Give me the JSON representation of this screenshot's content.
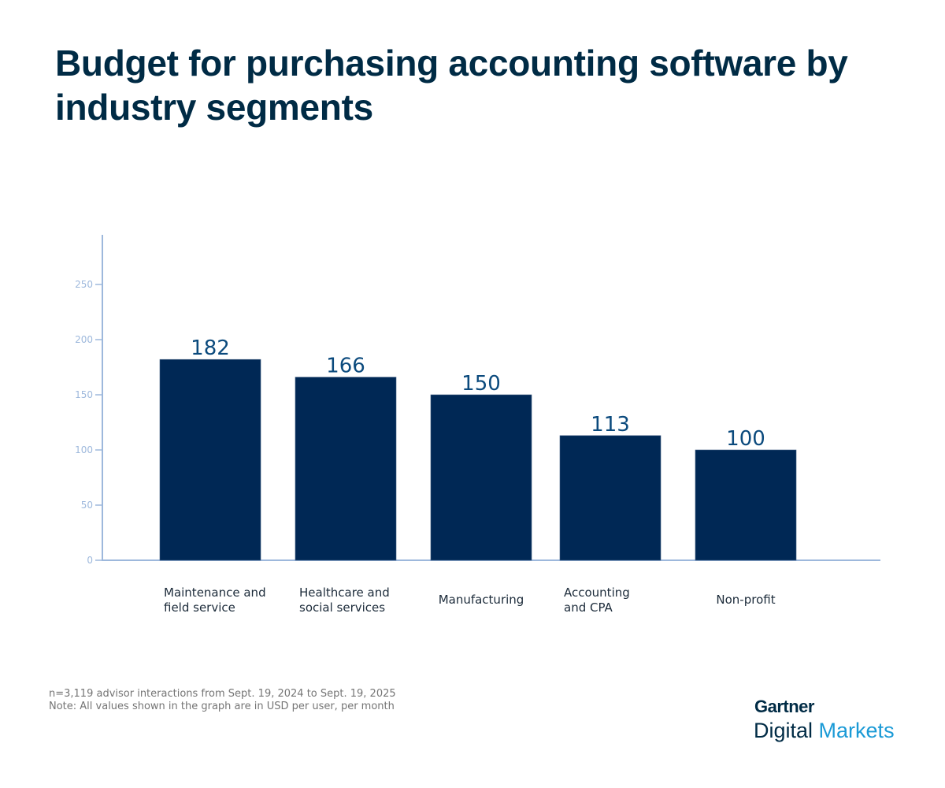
{
  "chart_data": {
    "type": "bar",
    "title": "Budget for purchasing accounting software by industry segments",
    "categories": [
      [
        "Maintenance and",
        "field service"
      ],
      [
        "Healthcare and",
        "social services"
      ],
      [
        "Manufacturing"
      ],
      [
        "Accounting",
        "and CPA"
      ],
      [
        "Non-profit"
      ]
    ],
    "values": [
      182,
      166,
      150,
      113,
      100
    ],
    "data_labels": [
      "182",
      "166",
      "150",
      "113",
      "100"
    ],
    "yticks": [
      0,
      50,
      100,
      150,
      200,
      250
    ],
    "ylim": [
      0,
      295
    ],
    "xlabel": "",
    "ylabel": "",
    "grid": false,
    "colors": {
      "bar": "#002855",
      "axis": "#9db8dc",
      "label": "#0b4a7d"
    }
  },
  "notes": [
    "n=3,119 advisor interactions from Sept. 19, 2024 to Sept. 19, 2025",
    "Note: All values shown in the graph are in USD per user, per month"
  ],
  "logo": {
    "top": "Gartner",
    "bottom_a": "Digital",
    "bottom_b": "Markets"
  }
}
